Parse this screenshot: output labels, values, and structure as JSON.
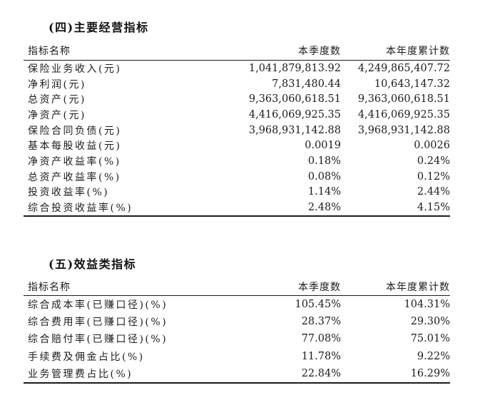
{
  "colors": {
    "background": "#ffffff",
    "text": "#1c1c1c",
    "line": "#1a1a1a"
  },
  "sections": [
    {
      "title": "(四)主要经营指标",
      "columns": {
        "name": "指标名称",
        "quarter": "本季度数",
        "ytd": "本年度累计数"
      },
      "rows": [
        {
          "label": "保险业务收入(元)",
          "quarter": "1,041,879,813.92",
          "ytd": "4,249,865,407.72"
        },
        {
          "label": "净利润(元)",
          "quarter": "7,831,480.44",
          "ytd": "10,643,147.32"
        },
        {
          "label": "总资产(元)",
          "quarter": "9,363,060,618.51",
          "ytd": "9,363,060,618.51"
        },
        {
          "label": "净资产(元)",
          "quarter": "4,416,069,925.35",
          "ytd": "4,416,069,925.35"
        },
        {
          "label": "保险合同负债(元)",
          "quarter": "3,968,931,142.88",
          "ytd": "3,968,931,142.88"
        },
        {
          "label": "基本每股收益(元)",
          "quarter": "0.0019",
          "ytd": "0.0026"
        },
        {
          "label": "净资产收益率(%)",
          "quarter": "0.18%",
          "ytd": "0.24%"
        },
        {
          "label": "总资产收益率(%)",
          "quarter": "0.08%",
          "ytd": "0.12%"
        },
        {
          "label": "投资收益率(%)",
          "quarter": "1.14%",
          "ytd": "2.44%"
        },
        {
          "label": "综合投资收益率(%)",
          "quarter": "2.48%",
          "ytd": "4.15%"
        }
      ]
    },
    {
      "title": "(五)效益类指标",
      "columns": {
        "name": "指标名称",
        "quarter": "本季度数",
        "ytd": "本年度累计数"
      },
      "rows": [
        {
          "label": "综合成本率(已赚口径)(%)",
          "quarter": "105.45%",
          "ytd": "104.31%"
        },
        {
          "label": "综合费用率(已赚口径)(%)",
          "quarter": "28.37%",
          "ytd": "29.30%"
        },
        {
          "label": "综合赔付率(已赚口径)(%)",
          "quarter": "77.08%",
          "ytd": "75.01%"
        },
        {
          "label": "手续费及佣金占比(%)",
          "quarter": "11.78%",
          "ytd": "9.22%"
        },
        {
          "label": "业务管理费占比(%)",
          "quarter": "22.84%",
          "ytd": "16.29%"
        }
      ]
    }
  ]
}
